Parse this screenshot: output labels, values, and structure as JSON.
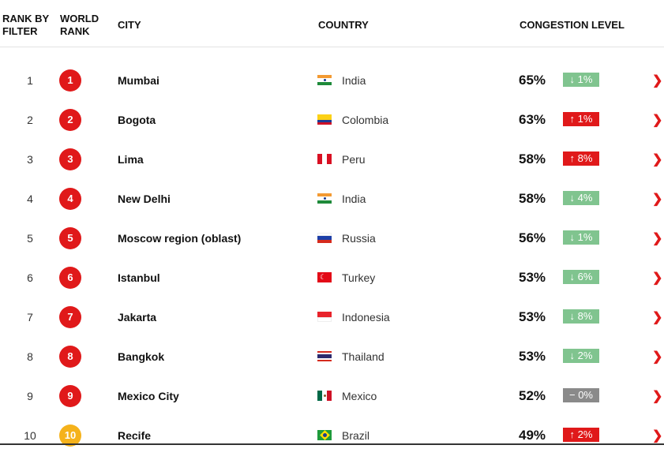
{
  "header": {
    "rank_by_filter": "RANK BY FILTER",
    "world_rank": "WORLD RANK",
    "city": "CITY",
    "country": "COUNTRY",
    "congestion": "CONGESTION LEVEL"
  },
  "colors": {
    "down": "#80c48f",
    "up": "#e0191a",
    "flat": "#8a8a8a",
    "rank_badge": "#e0191a",
    "rank_badge_10": "#f5b21b"
  },
  "rows": [
    {
      "rank": "1",
      "world_rank": "1",
      "city": "Mumbai",
      "country": "India",
      "flag": "india",
      "level": "65%",
      "change": "↓ 1%",
      "trend": "down"
    },
    {
      "rank": "2",
      "world_rank": "2",
      "city": "Bogota",
      "country": "Colombia",
      "flag": "colombia",
      "level": "63%",
      "change": "↑ 1%",
      "trend": "up"
    },
    {
      "rank": "3",
      "world_rank": "3",
      "city": "Lima",
      "country": "Peru",
      "flag": "peru",
      "level": "58%",
      "change": "↑ 8%",
      "trend": "up"
    },
    {
      "rank": "4",
      "world_rank": "4",
      "city": "New Delhi",
      "country": "India",
      "flag": "india",
      "level": "58%",
      "change": "↓ 4%",
      "trend": "down"
    },
    {
      "rank": "5",
      "world_rank": "5",
      "city": "Moscow region (oblast)",
      "country": "Russia",
      "flag": "russia",
      "level": "56%",
      "change": "↓ 1%",
      "trend": "down"
    },
    {
      "rank": "6",
      "world_rank": "6",
      "city": "Istanbul",
      "country": "Turkey",
      "flag": "turkey",
      "level": "53%",
      "change": "↓ 6%",
      "trend": "down"
    },
    {
      "rank": "7",
      "world_rank": "7",
      "city": "Jakarta",
      "country": "Indonesia",
      "flag": "indonesia",
      "level": "53%",
      "change": "↓ 8%",
      "trend": "down"
    },
    {
      "rank": "8",
      "world_rank": "8",
      "city": "Bangkok",
      "country": "Thailand",
      "flag": "thailand",
      "level": "53%",
      "change": "↓ 2%",
      "trend": "down"
    },
    {
      "rank": "9",
      "world_rank": "9",
      "city": "Mexico City",
      "country": "Mexico",
      "flag": "mexico",
      "level": "52%",
      "change": "− 0%",
      "trend": "flat"
    },
    {
      "rank": "10",
      "world_rank": "10",
      "city": "Recife",
      "country": "Brazil",
      "flag": "brazil",
      "level": "49%",
      "change": "↑ 2%",
      "trend": "up"
    }
  ]
}
